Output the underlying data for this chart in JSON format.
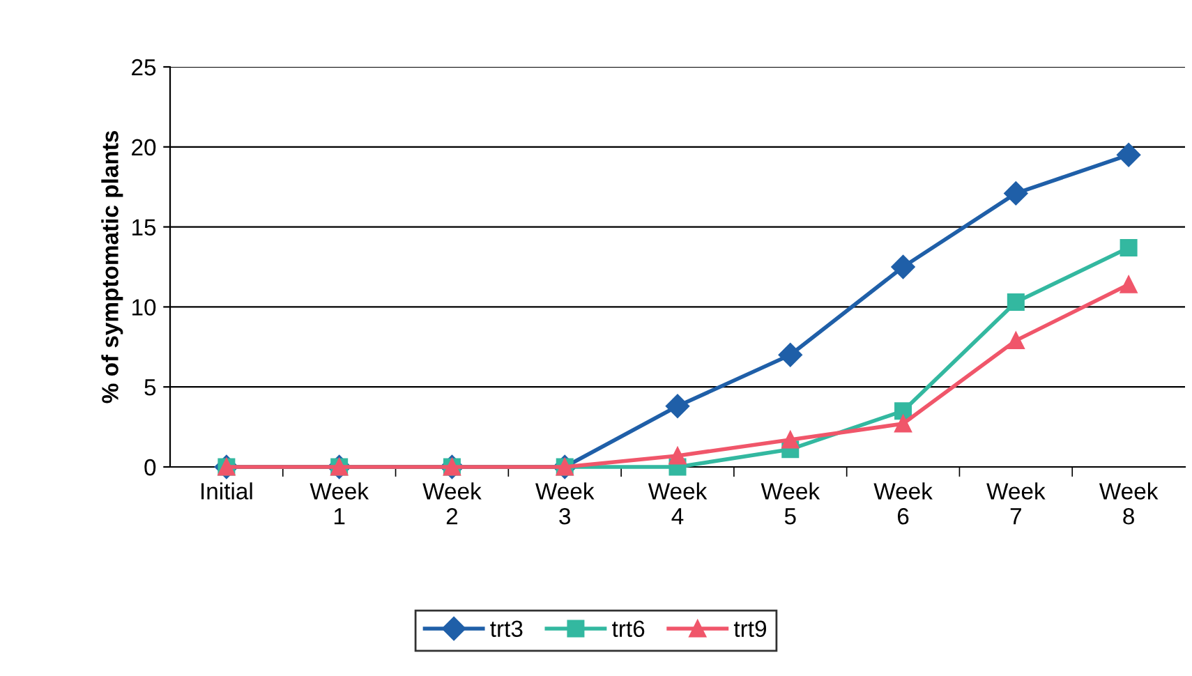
{
  "chart_data": {
    "type": "line",
    "ylabel": "% of symptomatic plants",
    "categories": [
      "Initial",
      "Week\n1",
      "Week\n2",
      "Week\n3",
      "Week\n4",
      "Week\n5",
      "Week\n6",
      "Week\n7",
      "Week\n8"
    ],
    "series": [
      {
        "name": "trt3",
        "color": "#1f5fa8",
        "marker": "diamond",
        "values": [
          0,
          0,
          0,
          0,
          3.8,
          7.0,
          12.5,
          17.1,
          19.5
        ]
      },
      {
        "name": "trt6",
        "color": "#33b8a0",
        "marker": "square",
        "values": [
          0,
          0,
          0,
          0,
          0,
          1.1,
          3.5,
          10.3,
          13.7
        ]
      },
      {
        "name": "trt9",
        "color": "#f0566a",
        "marker": "triangle",
        "values": [
          0,
          0,
          0,
          0,
          0.7,
          1.7,
          2.7,
          7.9,
          11.4
        ]
      }
    ],
    "ylim": [
      0,
      25
    ],
    "yticks": [
      0,
      5,
      10,
      15,
      20,
      25
    ],
    "grid": "y",
    "legend": "bottom",
    "line_style": "solid"
  }
}
